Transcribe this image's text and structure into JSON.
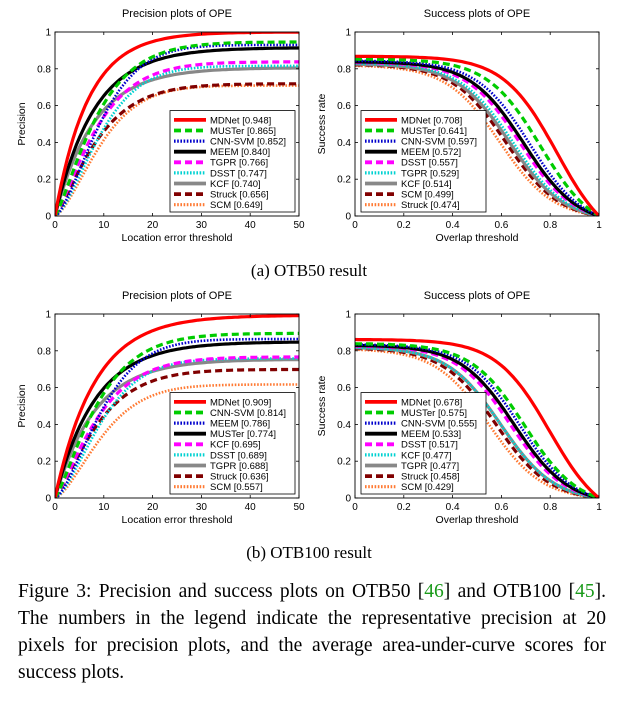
{
  "chart_data": [
    {
      "type": "line",
      "title": "Precision plots of OPE",
      "xlabel": "Location error threshold",
      "ylabel": "Precision",
      "xlim": [
        0,
        50
      ],
      "ylim": [
        0,
        1
      ],
      "xticks": [
        0,
        10,
        20,
        30,
        40,
        50
      ],
      "yticks": [
        0,
        0.2,
        0.4,
        0.6,
        0.8,
        1
      ],
      "legend_position": "bottom-right",
      "series": [
        {
          "name": "MDNet [0.948]",
          "tracker": "MDNet",
          "score": 0.948,
          "color": "#ff0000",
          "style": "solid"
        },
        {
          "name": "MUSTer [0.865]",
          "tracker": "MUSTer",
          "score": 0.865,
          "color": "#00cc00",
          "style": "dashed"
        },
        {
          "name": "CNN-SVM [0.852]",
          "tracker": "CNN-SVM",
          "score": 0.852,
          "color": "#0000cc",
          "style": "dotted"
        },
        {
          "name": "MEEM [0.840]",
          "tracker": "MEEM",
          "score": 0.84,
          "color": "#000000",
          "style": "solid"
        },
        {
          "name": "TGPR [0.766]",
          "tracker": "TGPR",
          "score": 0.766,
          "color": "#ff00ff",
          "style": "dashed"
        },
        {
          "name": "DSST [0.747]",
          "tracker": "DSST",
          "score": 0.747,
          "color": "#00d2d2",
          "style": "dotted"
        },
        {
          "name": "KCF [0.740]",
          "tracker": "KCF",
          "score": 0.74,
          "color": "#888888",
          "style": "solid"
        },
        {
          "name": "Struck [0.656]",
          "tracker": "Struck",
          "score": 0.656,
          "color": "#800000",
          "style": "dashed"
        },
        {
          "name": "SCM [0.649]",
          "tracker": "SCM",
          "score": 0.649,
          "color": "#ff7a33",
          "style": "dotted"
        }
      ]
    },
    {
      "type": "line",
      "title": "Success plots of OPE",
      "xlabel": "Overlap threshold",
      "ylabel": "Success rate",
      "xlim": [
        0,
        1
      ],
      "ylim": [
        0,
        1
      ],
      "xticks": [
        0,
        0.2,
        0.4,
        0.6,
        0.8,
        1
      ],
      "yticks": [
        0,
        0.2,
        0.4,
        0.6,
        0.8,
        1
      ],
      "legend_position": "bottom-left",
      "series": [
        {
          "name": "MDNet [0.708]",
          "tracker": "MDNet",
          "score": 0.708,
          "color": "#ff0000",
          "style": "solid"
        },
        {
          "name": "MUSTer [0.641]",
          "tracker": "MUSTer",
          "score": 0.641,
          "color": "#00cc00",
          "style": "dashed"
        },
        {
          "name": "CNN-SVM [0.597]",
          "tracker": "CNN-SVM",
          "score": 0.597,
          "color": "#0000cc",
          "style": "dotted"
        },
        {
          "name": "MEEM [0.572]",
          "tracker": "MEEM",
          "score": 0.572,
          "color": "#000000",
          "style": "solid"
        },
        {
          "name": "DSST [0.557]",
          "tracker": "DSST",
          "score": 0.557,
          "color": "#ff00ff",
          "style": "dashed"
        },
        {
          "name": "TGPR [0.529]",
          "tracker": "TGPR",
          "score": 0.529,
          "color": "#00d2d2",
          "style": "dotted"
        },
        {
          "name": "KCF [0.514]",
          "tracker": "KCF",
          "score": 0.514,
          "color": "#888888",
          "style": "solid"
        },
        {
          "name": "SCM [0.499]",
          "tracker": "SCM",
          "score": 0.499,
          "color": "#800000",
          "style": "dashed"
        },
        {
          "name": "Struck [0.474]",
          "tracker": "Struck",
          "score": 0.474,
          "color": "#ff7a33",
          "style": "dotted"
        }
      ]
    },
    {
      "type": "line",
      "title": "Precision plots of OPE",
      "xlabel": "Location error threshold",
      "ylabel": "Precision",
      "xlim": [
        0,
        50
      ],
      "ylim": [
        0,
        1
      ],
      "xticks": [
        0,
        10,
        20,
        30,
        40,
        50
      ],
      "yticks": [
        0,
        0.2,
        0.4,
        0.6,
        0.8,
        1
      ],
      "legend_position": "bottom-right",
      "series": [
        {
          "name": "MDNet [0.909]",
          "tracker": "MDNet",
          "score": 0.909,
          "color": "#ff0000",
          "style": "solid"
        },
        {
          "name": "CNN-SVM [0.814]",
          "tracker": "CNN-SVM",
          "score": 0.814,
          "color": "#00cc00",
          "style": "dashed"
        },
        {
          "name": "MEEM [0.786]",
          "tracker": "MEEM",
          "score": 0.786,
          "color": "#0000cc",
          "style": "dotted"
        },
        {
          "name": "MUSTer [0.774]",
          "tracker": "MUSTer",
          "score": 0.774,
          "color": "#000000",
          "style": "solid"
        },
        {
          "name": "KCF [0.695]",
          "tracker": "KCF",
          "score": 0.695,
          "color": "#ff00ff",
          "style": "dashed"
        },
        {
          "name": "DSST [0.689]",
          "tracker": "DSST",
          "score": 0.689,
          "color": "#00d2d2",
          "style": "dotted"
        },
        {
          "name": "TGPR [0.688]",
          "tracker": "TGPR",
          "score": 0.688,
          "color": "#888888",
          "style": "solid"
        },
        {
          "name": "Struck [0.636]",
          "tracker": "Struck",
          "score": 0.636,
          "color": "#800000",
          "style": "dashed"
        },
        {
          "name": "SCM [0.557]",
          "tracker": "SCM",
          "score": 0.557,
          "color": "#ff7a33",
          "style": "dotted"
        }
      ]
    },
    {
      "type": "line",
      "title": "Success plots of OPE",
      "xlabel": "Overlap threshold",
      "ylabel": "Success rate",
      "xlim": [
        0,
        1
      ],
      "ylim": [
        0,
        1
      ],
      "xticks": [
        0,
        0.2,
        0.4,
        0.6,
        0.8,
        1
      ],
      "yticks": [
        0,
        0.2,
        0.4,
        0.6,
        0.8,
        1
      ],
      "legend_position": "bottom-left",
      "series": [
        {
          "name": "MDNet [0.678]",
          "tracker": "MDNet",
          "score": 0.678,
          "color": "#ff0000",
          "style": "solid"
        },
        {
          "name": "MUSTer [0.575]",
          "tracker": "MUSTer",
          "score": 0.575,
          "color": "#00cc00",
          "style": "dashed"
        },
        {
          "name": "CNN-SVM [0.555]",
          "tracker": "CNN-SVM",
          "score": 0.555,
          "color": "#0000cc",
          "style": "dotted"
        },
        {
          "name": "MEEM [0.533]",
          "tracker": "MEEM",
          "score": 0.533,
          "color": "#000000",
          "style": "solid"
        },
        {
          "name": "DSST [0.517]",
          "tracker": "DSST",
          "score": 0.517,
          "color": "#ff00ff",
          "style": "dashed"
        },
        {
          "name": "KCF [0.477]",
          "tracker": "KCF",
          "score": 0.477,
          "color": "#00d2d2",
          "style": "dotted"
        },
        {
          "name": "TGPR [0.477]",
          "tracker": "TGPR",
          "score": 0.477,
          "color": "#888888",
          "style": "solid"
        },
        {
          "name": "Struck [0.458]",
          "tracker": "Struck",
          "score": 0.458,
          "color": "#800000",
          "style": "dashed"
        },
        {
          "name": "SCM [0.429]",
          "tracker": "SCM",
          "score": 0.429,
          "color": "#ff7a33",
          "style": "dotted"
        }
      ]
    }
  ],
  "subcaptions": [
    "(a) OTB50 result",
    "(b) OTB100 result"
  ],
  "caption": {
    "prefix": "Figure 3: Precision and success plots on OTB50 [",
    "ref1": "46",
    "middle": "] and OTB100 [",
    "ref2": "45",
    "suffix": "]. The numbers in the legend indicate the representative precision at 20 pixels for precision plots, and the average area-under-curve scores for success plots."
  }
}
